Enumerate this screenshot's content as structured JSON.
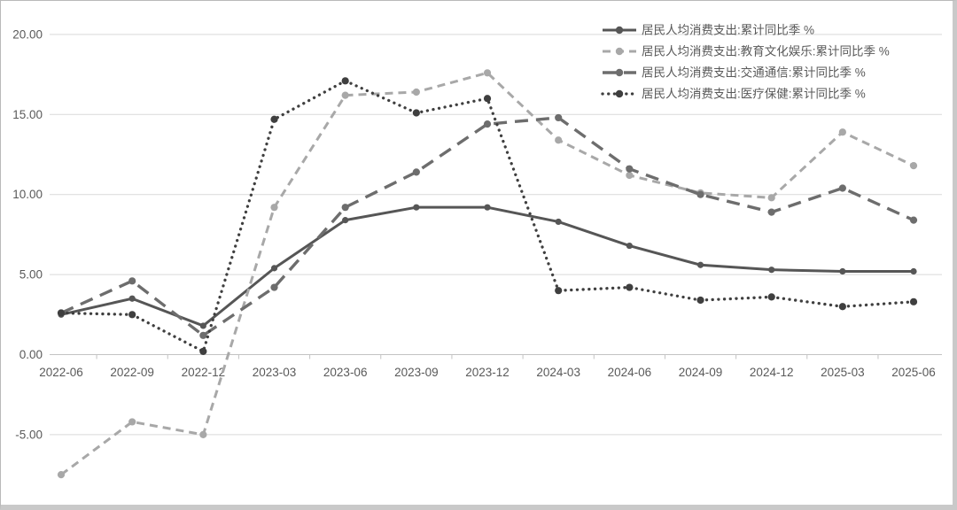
{
  "frame": {
    "background_color": "#ffffff",
    "border_color": "#c9c9c9"
  },
  "chart_data": {
    "type": "line",
    "title": "",
    "xlabel": "",
    "ylabel": "",
    "grid": true,
    "gridline_color": "#d9d9d9",
    "zero_axis_color": "#c3c3c3",
    "axis_text_color": "#595959",
    "legend_position": "top-right",
    "legend_text_color": "#595959",
    "ylim": [
      -8.6,
      20.9
    ],
    "y_ticks": [
      20,
      15,
      10,
      5,
      0,
      -5
    ],
    "y_tick_labels": [
      "20.00",
      "15.00",
      "10.00",
      "5.00",
      "0.00",
      "-5.00"
    ],
    "categories": [
      "2022-06",
      "2022-09",
      "2022-12",
      "2023-03",
      "2023-06",
      "2023-09",
      "2023-12",
      "2024-03",
      "2024-06",
      "2024-09",
      "2024-12",
      "2025-03",
      "2025-06"
    ],
    "series": [
      {
        "name": "居民人均消费支出:累计同比季 %",
        "color": "#565656",
        "line_style": "solid",
        "line_width": 3,
        "marker": "circle",
        "values": [
          2.5,
          3.5,
          1.8,
          5.4,
          8.4,
          9.2,
          9.2,
          8.3,
          6.8,
          5.6,
          5.3,
          5.2,
          5.2
        ]
      },
      {
        "name": "居民人均消费支出:教育文化娱乐:累计同比季 %",
        "color": "#a8a8a8",
        "line_style": "dashed",
        "line_width": 3,
        "marker": "circle",
        "values": [
          -7.5,
          -4.2,
          -5.0,
          9.2,
          16.2,
          16.4,
          17.6,
          13.4,
          11.2,
          10.1,
          9.8,
          13.9,
          11.8
        ]
      },
      {
        "name": "居民人均消费支出:交通通信:累计同比季 %",
        "color": "#6d6d6d",
        "line_style": "long-dash",
        "line_width": 3.4,
        "marker": "circle",
        "values": [
          2.6,
          4.6,
          1.2,
          4.2,
          9.2,
          11.4,
          14.4,
          14.8,
          11.6,
          10.0,
          8.9,
          10.4,
          8.4
        ]
      },
      {
        "name": "居民人均消费支出:医疗保健:累计同比季 %",
        "color": "#3f3f3f",
        "line_style": "dotted",
        "line_width": 3.3,
        "marker": "circle",
        "values": [
          2.6,
          2.5,
          0.2,
          14.7,
          17.1,
          15.1,
          16.0,
          4.0,
          4.2,
          3.4,
          3.6,
          3.0,
          3.3
        ]
      }
    ]
  }
}
